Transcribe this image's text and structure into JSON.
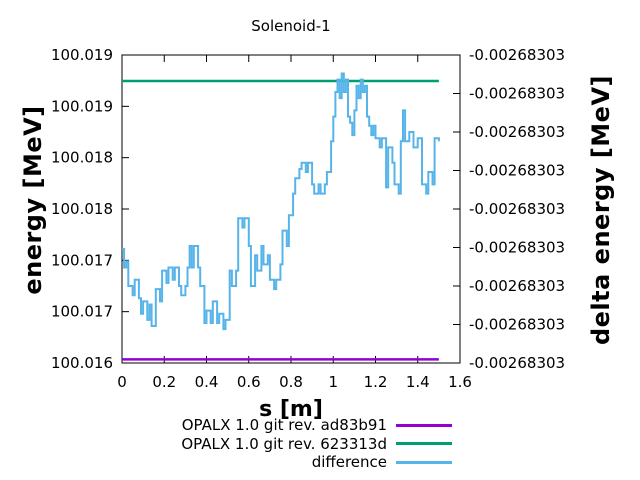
{
  "title": "Solenoid-1",
  "axes": {
    "x_label": "s [m]",
    "y_left_label": "energy [MeV]",
    "y_right_label": "delta energy [MeV]"
  },
  "legend": {
    "items": [
      {
        "label": "OPALX 1.0 git rev. ad83b91",
        "color": "#9400d3"
      },
      {
        "label": "OPALX 1.0 git rev. 623313d",
        "color": "#009e73"
      },
      {
        "label": "difference",
        "color": "#56b4e9"
      }
    ]
  },
  "colors": {
    "background": "#ffffff",
    "axis": "#000000",
    "text": "#000000"
  },
  "chart_data": {
    "type": "line",
    "title": "Solenoid-1",
    "xlabel": "s [m]",
    "ylabel_left": "energy [MeV]",
    "ylabel_right": "delta energy [MeV]",
    "grid": false,
    "legend_position": "below-plot-right",
    "xlim": [
      0,
      1.6
    ],
    "x_ticks": [
      {
        "value": 0.0,
        "label": "0"
      },
      {
        "value": 0.2,
        "label": "0.2"
      },
      {
        "value": 0.4,
        "label": "0.4"
      },
      {
        "value": 0.6,
        "label": "0.6"
      },
      {
        "value": 0.8,
        "label": "0.8"
      },
      {
        "value": 1.0,
        "label": "1"
      },
      {
        "value": 1.2,
        "label": "1.2"
      },
      {
        "value": 1.4,
        "label": "1.4"
      },
      {
        "value": 1.6,
        "label": "1.6"
      }
    ],
    "ylim_left": [
      100.016,
      100.019
    ],
    "y_left_ticks": [
      {
        "value": 100.016,
        "label": "100.016"
      },
      {
        "value": 100.0165,
        "label": "100.017"
      },
      {
        "value": 100.017,
        "label": "100.017"
      },
      {
        "value": 100.0175,
        "label": "100.018"
      },
      {
        "value": 100.018,
        "label": "100.018"
      },
      {
        "value": 100.0185,
        "label": "100.019"
      },
      {
        "value": 100.019,
        "label": "100.019"
      }
    ],
    "y_right_tick_label": "-0.00268303",
    "y_right_tick_count": 9,
    "series": [
      {
        "id": "opalx-ad83b91",
        "name": "OPALX 1.0 git rev. ad83b91",
        "type": "const",
        "axis": "left",
        "value": 100.016035,
        "x_range": [
          0,
          1.5
        ],
        "color": "#9400d3"
      },
      {
        "id": "opalx-623313d",
        "name": "OPALX 1.0 git rev. 623313d",
        "type": "const",
        "axis": "left",
        "value": 100.018747,
        "x_range": [
          0,
          1.5
        ],
        "color": "#009e73"
      },
      {
        "id": "difference",
        "name": "difference",
        "type": "steps",
        "axis": "right",
        "displayed_constant_label": "-0.00268303",
        "color": "#56b4e9",
        "y_units": "fraction_of_plot_height",
        "points": [
          [
            0.0,
            0.37
          ],
          [
            0.01,
            0.31
          ],
          [
            0.02,
            0.33
          ],
          [
            0.03,
            0.25
          ],
          [
            0.05,
            0.22
          ],
          [
            0.06,
            0.27
          ],
          [
            0.08,
            0.21
          ],
          [
            0.09,
            0.16
          ],
          [
            0.1,
            0.2
          ],
          [
            0.12,
            0.14
          ],
          [
            0.13,
            0.19
          ],
          [
            0.14,
            0.12
          ],
          [
            0.16,
            0.24
          ],
          [
            0.18,
            0.2
          ],
          [
            0.19,
            0.3
          ],
          [
            0.21,
            0.26
          ],
          [
            0.22,
            0.31
          ],
          [
            0.24,
            0.27
          ],
          [
            0.25,
            0.31
          ],
          [
            0.27,
            0.25
          ],
          [
            0.28,
            0.22
          ],
          [
            0.3,
            0.25
          ],
          [
            0.31,
            0.31
          ],
          [
            0.32,
            0.38
          ],
          [
            0.33,
            0.31
          ],
          [
            0.34,
            0.38
          ],
          [
            0.36,
            0.31
          ],
          [
            0.37,
            0.25
          ],
          [
            0.39,
            0.13
          ],
          [
            0.4,
            0.17
          ],
          [
            0.42,
            0.13
          ],
          [
            0.43,
            0.2
          ],
          [
            0.45,
            0.13
          ],
          [
            0.46,
            0.16
          ],
          [
            0.48,
            0.11
          ],
          [
            0.49,
            0.14
          ],
          [
            0.51,
            0.3
          ],
          [
            0.52,
            0.25
          ],
          [
            0.54,
            0.3
          ],
          [
            0.55,
            0.47
          ],
          [
            0.57,
            0.44
          ],
          [
            0.58,
            0.47
          ],
          [
            0.6,
            0.38
          ],
          [
            0.61,
            0.25
          ],
          [
            0.63,
            0.35
          ],
          [
            0.64,
            0.3
          ],
          [
            0.66,
            0.38
          ],
          [
            0.67,
            0.32
          ],
          [
            0.69,
            0.35
          ],
          [
            0.7,
            0.27
          ],
          [
            0.72,
            0.24
          ],
          [
            0.73,
            0.27
          ],
          [
            0.75,
            0.32
          ],
          [
            0.76,
            0.43
          ],
          [
            0.78,
            0.38
          ],
          [
            0.79,
            0.48
          ],
          [
            0.81,
            0.55
          ],
          [
            0.82,
            0.6
          ],
          [
            0.84,
            0.63
          ],
          [
            0.85,
            0.65
          ],
          [
            0.87,
            0.62
          ],
          [
            0.88,
            0.65
          ],
          [
            0.9,
            0.58
          ],
          [
            0.91,
            0.55
          ],
          [
            0.93,
            0.58
          ],
          [
            0.94,
            0.55
          ],
          [
            0.96,
            0.58
          ],
          [
            0.97,
            0.62
          ],
          [
            0.99,
            0.72
          ],
          [
            1.0,
            0.8
          ],
          [
            1.01,
            0.88
          ],
          [
            1.02,
            0.92
          ],
          [
            1.03,
            0.86
          ],
          [
            1.04,
            0.94
          ],
          [
            1.05,
            0.88
          ],
          [
            1.06,
            0.92
          ],
          [
            1.07,
            0.8
          ],
          [
            1.08,
            0.78
          ],
          [
            1.09,
            0.74
          ],
          [
            1.1,
            0.82
          ],
          [
            1.11,
            0.9
          ],
          [
            1.12,
            0.86
          ],
          [
            1.13,
            0.92
          ],
          [
            1.14,
            0.88
          ],
          [
            1.15,
            0.9
          ],
          [
            1.16,
            0.8
          ],
          [
            1.17,
            0.77
          ],
          [
            1.18,
            0.74
          ],
          [
            1.19,
            0.77
          ],
          [
            1.2,
            0.73
          ],
          [
            1.22,
            0.7
          ],
          [
            1.23,
            0.73
          ],
          [
            1.25,
            0.57
          ],
          [
            1.26,
            0.7
          ],
          [
            1.28,
            0.65
          ],
          [
            1.29,
            0.58
          ],
          [
            1.31,
            0.55
          ],
          [
            1.32,
            0.72
          ],
          [
            1.33,
            0.82
          ],
          [
            1.34,
            0.72
          ],
          [
            1.36,
            0.75
          ],
          [
            1.38,
            0.7
          ],
          [
            1.4,
            0.73
          ],
          [
            1.42,
            0.58
          ],
          [
            1.44,
            0.55
          ],
          [
            1.45,
            0.62
          ],
          [
            1.47,
            0.58
          ],
          [
            1.48,
            0.73
          ],
          [
            1.5,
            0.72
          ]
        ]
      }
    ]
  }
}
